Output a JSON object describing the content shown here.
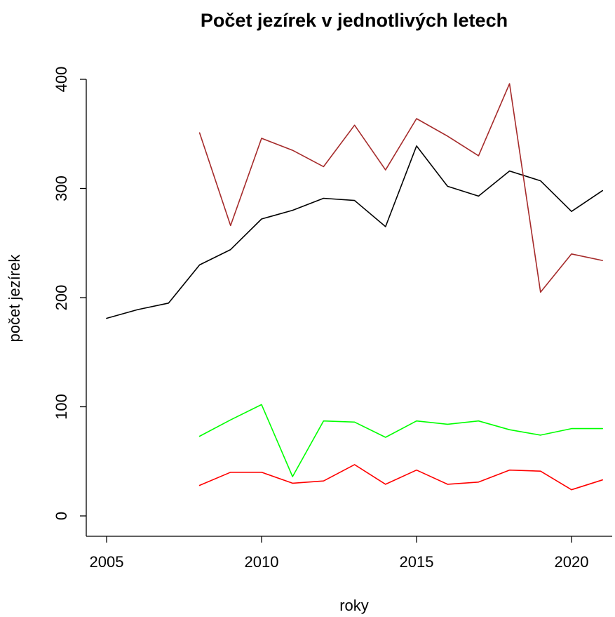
{
  "chart_data": {
    "type": "line",
    "title": "Počet jezírek v jednotlivých letech",
    "xlabel": "roky",
    "ylabel": "počet jezírek",
    "xlim": [
      2005,
      2021
    ],
    "ylim": [
      0,
      400
    ],
    "x_ticks": [
      2005,
      2010,
      2015,
      2020
    ],
    "y_ticks": [
      0,
      100,
      200,
      300,
      400
    ],
    "grid": false,
    "legend": "none",
    "series": [
      {
        "color": "#000000",
        "x": [
          2005,
          2006,
          2007,
          2008,
          2009,
          2010,
          2011,
          2012,
          2013,
          2014,
          2015,
          2016,
          2017,
          2018,
          2019,
          2020,
          2021
        ],
        "values": [
          181,
          189,
          195,
          230,
          244,
          272,
          280,
          291,
          289,
          265,
          339,
          302,
          293,
          316,
          307,
          279,
          298
        ]
      },
      {
        "color": "#a52a2a",
        "x": [
          2008,
          2009,
          2010,
          2011,
          2012,
          2013,
          2014,
          2015,
          2016,
          2017,
          2018,
          2019,
          2020,
          2021
        ],
        "values": [
          351,
          266,
          346,
          335,
          320,
          358,
          317,
          364,
          348,
          330,
          396,
          205,
          240,
          234
        ]
      },
      {
        "color": "#00ff00",
        "x": [
          2008,
          2009,
          2010,
          2011,
          2012,
          2013,
          2014,
          2015,
          2016,
          2017,
          2018,
          2019,
          2020,
          2021
        ],
        "values": [
          73,
          88,
          102,
          36,
          87,
          86,
          72,
          87,
          84,
          87,
          79,
          74,
          80,
          80
        ]
      },
      {
        "color": "#ff0000",
        "x": [
          2008,
          2009,
          2010,
          2011,
          2012,
          2013,
          2014,
          2015,
          2016,
          2017,
          2018,
          2019,
          2020,
          2021
        ],
        "values": [
          28,
          40,
          40,
          30,
          32,
          47,
          29,
          42,
          29,
          31,
          42,
          41,
          24,
          33
        ]
      }
    ]
  }
}
